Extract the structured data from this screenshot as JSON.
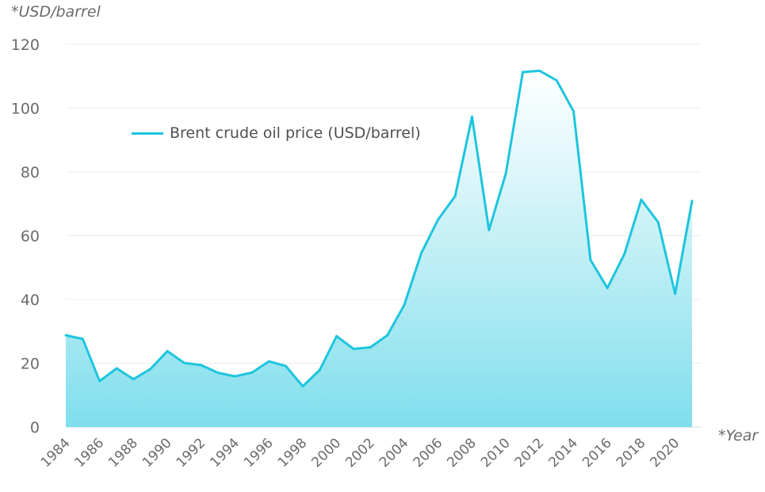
{
  "chart_data": {
    "type": "area",
    "y_unit_label": "*USD/barrel",
    "x_unit_label": "*Year",
    "ylim": [
      0,
      120
    ],
    "yticks": [
      0,
      20,
      40,
      60,
      80,
      100,
      120
    ],
    "xlim": [
      1984,
      2021
    ],
    "xticks": [
      1984,
      1986,
      1988,
      1990,
      1992,
      1994,
      1996,
      1998,
      2000,
      2002,
      2004,
      2006,
      2008,
      2010,
      2012,
      2014,
      2016,
      2018,
      2020
    ],
    "grid": true,
    "legend_position": "top-left",
    "color": "#1ec5dd",
    "series": [
      {
        "name": "Brent crude oil price (USD/barrel)",
        "x": [
          1984,
          1985,
          1986,
          1987,
          1988,
          1989,
          1990,
          1991,
          1992,
          1993,
          1994,
          1995,
          1996,
          1997,
          1998,
          1999,
          2000,
          2001,
          2002,
          2003,
          2004,
          2005,
          2006,
          2007,
          2008,
          2009,
          2010,
          2011,
          2012,
          2013,
          2014,
          2015,
          2016,
          2017,
          2018,
          2019,
          2020,
          2021
        ],
        "values": [
          28.8,
          27.6,
          14.4,
          18.4,
          15.0,
          18.2,
          23.8,
          20.1,
          19.4,
          17.0,
          15.9,
          17.1,
          20.6,
          19.1,
          12.8,
          17.9,
          28.5,
          24.5,
          25.0,
          28.8,
          38.3,
          54.5,
          65.1,
          72.4,
          97.3,
          61.8,
          79.5,
          111.3,
          111.7,
          108.7,
          99.0,
          52.4,
          43.6,
          54.2,
          71.3,
          64.2,
          41.8,
          70.9
        ]
      }
    ]
  }
}
